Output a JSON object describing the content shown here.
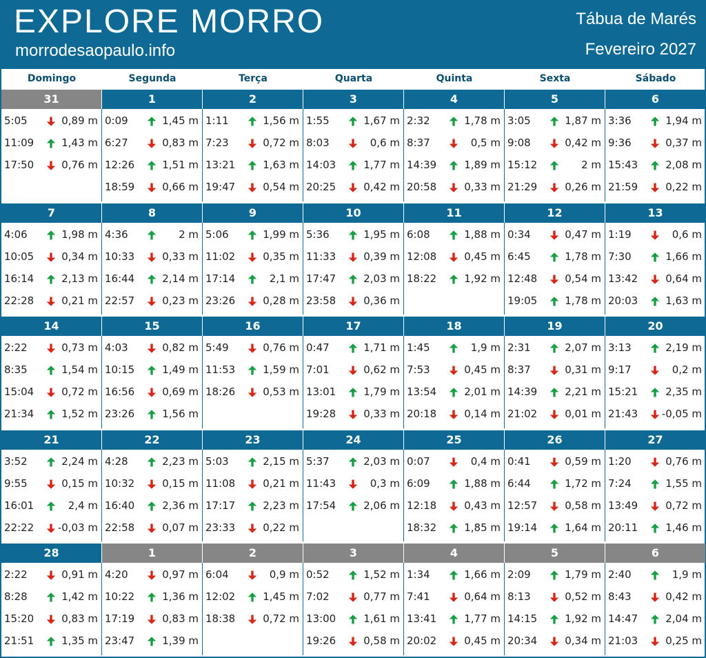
{
  "header": {
    "brand": "EXPLORE MORRO",
    "site": "morrodesaopaulo.info",
    "title": "Tábua de Marés",
    "month": "Fevereiro 2027"
  },
  "colors": {
    "up": "#1a9e45",
    "down": "#d62718"
  },
  "weekdays": [
    "Domingo",
    "Segunda",
    "Terça",
    "Quarta",
    "Quinta",
    "Sexta",
    "Sábado"
  ],
  "weeks": [
    {
      "days": [
        {
          "day": "31",
          "muted": true,
          "tides": [
            [
              "5:05",
              "down",
              "0,89 m"
            ],
            [
              "11:09",
              "up",
              "1,43 m"
            ],
            [
              "17:50",
              "down",
              "0,76 m"
            ]
          ]
        },
        {
          "day": "1",
          "tides": [
            [
              "0:09",
              "up",
              "1,45 m"
            ],
            [
              "6:27",
              "down",
              "0,83 m"
            ],
            [
              "12:26",
              "up",
              "1,51 m"
            ],
            [
              "18:59",
              "down",
              "0,66 m"
            ]
          ]
        },
        {
          "day": "2",
          "tides": [
            [
              "1:11",
              "up",
              "1,56 m"
            ],
            [
              "7:23",
              "down",
              "0,72 m"
            ],
            [
              "13:21",
              "up",
              "1,63 m"
            ],
            [
              "19:47",
              "down",
              "0,54 m"
            ]
          ]
        },
        {
          "day": "3",
          "tides": [
            [
              "1:55",
              "up",
              "1,67 m"
            ],
            [
              "8:03",
              "down",
              "0,6 m"
            ],
            [
              "14:03",
              "up",
              "1,77 m"
            ],
            [
              "20:25",
              "down",
              "0,42 m"
            ]
          ]
        },
        {
          "day": "4",
          "tides": [
            [
              "2:32",
              "up",
              "1,78 m"
            ],
            [
              "8:37",
              "down",
              "0,5 m"
            ],
            [
              "14:39",
              "up",
              "1,89 m"
            ],
            [
              "20:58",
              "down",
              "0,33 m"
            ]
          ]
        },
        {
          "day": "5",
          "tides": [
            [
              "3:05",
              "up",
              "1,87 m"
            ],
            [
              "9:08",
              "down",
              "0,42 m"
            ],
            [
              "15:12",
              "up",
              "2 m"
            ],
            [
              "21:29",
              "down",
              "0,26 m"
            ]
          ]
        },
        {
          "day": "6",
          "tides": [
            [
              "3:36",
              "up",
              "1,94 m"
            ],
            [
              "9:36",
              "down",
              "0,37 m"
            ],
            [
              "15:43",
              "up",
              "2,08 m"
            ],
            [
              "21:59",
              "down",
              "0,22 m"
            ]
          ]
        }
      ]
    },
    {
      "days": [
        {
          "day": "7",
          "tides": [
            [
              "4:06",
              "up",
              "1,98 m"
            ],
            [
              "10:05",
              "down",
              "0,34 m"
            ],
            [
              "16:14",
              "up",
              "2,13 m"
            ],
            [
              "22:28",
              "down",
              "0,21 m"
            ]
          ]
        },
        {
          "day": "8",
          "tides": [
            [
              "4:36",
              "up",
              "2 m"
            ],
            [
              "10:33",
              "down",
              "0,33 m"
            ],
            [
              "16:44",
              "up",
              "2,14 m"
            ],
            [
              "22:57",
              "down",
              "0,23 m"
            ]
          ]
        },
        {
          "day": "9",
          "tides": [
            [
              "5:06",
              "up",
              "1,99 m"
            ],
            [
              "11:02",
              "down",
              "0,35 m"
            ],
            [
              "17:14",
              "up",
              "2,1 m"
            ],
            [
              "23:26",
              "down",
              "0,28 m"
            ]
          ]
        },
        {
          "day": "10",
          "tides": [
            [
              "5:36",
              "up",
              "1,95 m"
            ],
            [
              "11:33",
              "down",
              "0,39 m"
            ],
            [
              "17:47",
              "up",
              "2,03 m"
            ],
            [
              "23:58",
              "down",
              "0,36 m"
            ]
          ]
        },
        {
          "day": "11",
          "tides": [
            [
              "6:08",
              "up",
              "1,88 m"
            ],
            [
              "12:08",
              "down",
              "0,45 m"
            ],
            [
              "18:22",
              "up",
              "1,92 m"
            ]
          ]
        },
        {
          "day": "12",
          "tides": [
            [
              "0:34",
              "down",
              "0,47 m"
            ],
            [
              "6:45",
              "up",
              "1,78 m"
            ],
            [
              "12:48",
              "down",
              "0,54 m"
            ],
            [
              "19:05",
              "up",
              "1,78 m"
            ]
          ]
        },
        {
          "day": "13",
          "tides": [
            [
              "1:19",
              "down",
              "0,6 m"
            ],
            [
              "7:30",
              "up",
              "1,66 m"
            ],
            [
              "13:42",
              "down",
              "0,64 m"
            ],
            [
              "20:03",
              "up",
              "1,63 m"
            ]
          ]
        }
      ]
    },
    {
      "days": [
        {
          "day": "14",
          "tides": [
            [
              "2:22",
              "down",
              "0,73 m"
            ],
            [
              "8:35",
              "up",
              "1,54 m"
            ],
            [
              "15:04",
              "down",
              "0,72 m"
            ],
            [
              "21:34",
              "up",
              "1,52 m"
            ]
          ]
        },
        {
          "day": "15",
          "tides": [
            [
              "4:03",
              "down",
              "0,82 m"
            ],
            [
              "10:15",
              "up",
              "1,49 m"
            ],
            [
              "16:56",
              "down",
              "0,69 m"
            ],
            [
              "23:26",
              "up",
              "1,56 m"
            ]
          ]
        },
        {
          "day": "16",
          "tides": [
            [
              "5:49",
              "down",
              "0,76 m"
            ],
            [
              "11:53",
              "up",
              "1,59 m"
            ],
            [
              "18:26",
              "down",
              "0,53 m"
            ]
          ]
        },
        {
          "day": "17",
          "tides": [
            [
              "0:47",
              "up",
              "1,71 m"
            ],
            [
              "7:01",
              "down",
              "0,62 m"
            ],
            [
              "13:01",
              "up",
              "1,79 m"
            ],
            [
              "19:28",
              "down",
              "0,33 m"
            ]
          ]
        },
        {
          "day": "18",
          "tides": [
            [
              "1:45",
              "up",
              "1,9 m"
            ],
            [
              "7:53",
              "down",
              "0,45 m"
            ],
            [
              "13:54",
              "up",
              "2,01 m"
            ],
            [
              "20:18",
              "down",
              "0,14 m"
            ]
          ]
        },
        {
          "day": "19",
          "tides": [
            [
              "2:31",
              "up",
              "2,07 m"
            ],
            [
              "8:37",
              "down",
              "0,31 m"
            ],
            [
              "14:39",
              "up",
              "2,21 m"
            ],
            [
              "21:02",
              "down",
              "0,01 m"
            ]
          ]
        },
        {
          "day": "20",
          "tides": [
            [
              "3:13",
              "up",
              "2,19 m"
            ],
            [
              "9:17",
              "down",
              "0,2 m"
            ],
            [
              "15:21",
              "up",
              "2,35 m"
            ],
            [
              "21:43",
              "down",
              "-0,05 m"
            ]
          ]
        }
      ]
    },
    {
      "days": [
        {
          "day": "21",
          "tides": [
            [
              "3:52",
              "up",
              "2,24 m"
            ],
            [
              "9:55",
              "down",
              "0,15 m"
            ],
            [
              "16:01",
              "up",
              "2,4 m"
            ],
            [
              "22:22",
              "down",
              "-0,03 m"
            ]
          ]
        },
        {
          "day": "22",
          "tides": [
            [
              "4:28",
              "up",
              "2,23 m"
            ],
            [
              "10:32",
              "down",
              "0,15 m"
            ],
            [
              "16:40",
              "up",
              "2,36 m"
            ],
            [
              "22:58",
              "down",
              "0,07 m"
            ]
          ]
        },
        {
          "day": "23",
          "tides": [
            [
              "5:03",
              "up",
              "2,15 m"
            ],
            [
              "11:08",
              "down",
              "0,21 m"
            ],
            [
              "17:17",
              "up",
              "2,23 m"
            ],
            [
              "23:33",
              "down",
              "0,22 m"
            ]
          ]
        },
        {
          "day": "24",
          "tides": [
            [
              "5:37",
              "up",
              "2,03 m"
            ],
            [
              "11:43",
              "down",
              "0,3 m"
            ],
            [
              "17:54",
              "up",
              "2,06 m"
            ]
          ]
        },
        {
          "day": "25",
          "tides": [
            [
              "0:07",
              "down",
              "0,4 m"
            ],
            [
              "6:09",
              "up",
              "1,88 m"
            ],
            [
              "12:18",
              "down",
              "0,43 m"
            ],
            [
              "18:32",
              "up",
              "1,85 m"
            ]
          ]
        },
        {
          "day": "26",
          "tides": [
            [
              "0:41",
              "down",
              "0,59 m"
            ],
            [
              "6:44",
              "up",
              "1,72 m"
            ],
            [
              "12:57",
              "down",
              "0,58 m"
            ],
            [
              "19:14",
              "up",
              "1,64 m"
            ]
          ]
        },
        {
          "day": "27",
          "tides": [
            [
              "1:20",
              "down",
              "0,76 m"
            ],
            [
              "7:24",
              "up",
              "1,55 m"
            ],
            [
              "13:49",
              "down",
              "0,72 m"
            ],
            [
              "20:11",
              "up",
              "1,46 m"
            ]
          ]
        }
      ]
    },
    {
      "days": [
        {
          "day": "28",
          "tides": [
            [
              "2:22",
              "down",
              "0,91 m"
            ],
            [
              "8:28",
              "up",
              "1,42 m"
            ],
            [
              "15:20",
              "down",
              "0,83 m"
            ],
            [
              "21:51",
              "up",
              "1,35 m"
            ]
          ]
        },
        {
          "day": "1",
          "muted": true,
          "tides": [
            [
              "4:20",
              "down",
              "0,97 m"
            ],
            [
              "10:22",
              "up",
              "1,36 m"
            ],
            [
              "17:19",
              "down",
              "0,83 m"
            ],
            [
              "23:47",
              "up",
              "1,39 m"
            ]
          ]
        },
        {
          "day": "2",
          "muted": true,
          "tides": [
            [
              "6:04",
              "down",
              "0,9 m"
            ],
            [
              "12:02",
              "up",
              "1,45 m"
            ],
            [
              "18:38",
              "down",
              "0,72 m"
            ]
          ]
        },
        {
          "day": "3",
          "muted": true,
          "tides": [
            [
              "0:52",
              "up",
              "1,52 m"
            ],
            [
              "7:02",
              "down",
              "0,77 m"
            ],
            [
              "13:00",
              "up",
              "1,61 m"
            ],
            [
              "19:26",
              "down",
              "0,58 m"
            ]
          ]
        },
        {
          "day": "4",
          "muted": true,
          "tides": [
            [
              "1:34",
              "up",
              "1,66 m"
            ],
            [
              "7:41",
              "down",
              "0,64 m"
            ],
            [
              "13:41",
              "up",
              "1,77 m"
            ],
            [
              "20:02",
              "down",
              "0,45 m"
            ]
          ]
        },
        {
          "day": "5",
          "muted": true,
          "tides": [
            [
              "2:09",
              "up",
              "1,79 m"
            ],
            [
              "8:13",
              "down",
              "0,52 m"
            ],
            [
              "14:15",
              "up",
              "1,92 m"
            ],
            [
              "20:34",
              "down",
              "0,34 m"
            ]
          ]
        },
        {
          "day": "6",
          "muted": true,
          "tides": [
            [
              "2:40",
              "up",
              "1,9 m"
            ],
            [
              "8:43",
              "down",
              "0,42 m"
            ],
            [
              "14:47",
              "up",
              "2,04 m"
            ],
            [
              "21:03",
              "down",
              "0,25 m"
            ]
          ]
        }
      ]
    }
  ]
}
